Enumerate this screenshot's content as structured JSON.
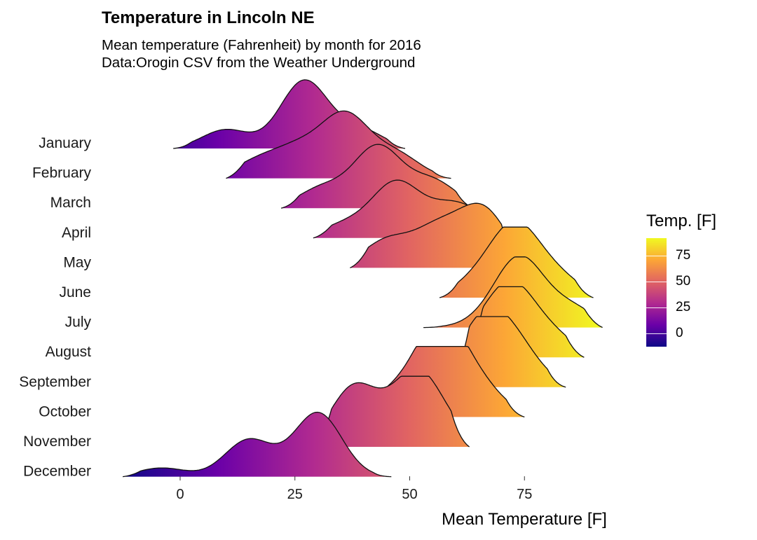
{
  "title": "Temperature in Lincoln NE",
  "subtitle_line1": "Mean temperature (Fahrenheit) by month for 2016",
  "subtitle_line2": "Data:Orogin CSV from the Weather Underground",
  "legend": {
    "title": "Temp. [F]",
    "ticks": [
      "75",
      "50",
      "25",
      "0"
    ],
    "colors": [
      "#0d0887",
      "#6a00a8",
      "#b12a90",
      "#e16462",
      "#fca636",
      "#f0f921"
    ]
  },
  "chart_data": {
    "type": "ridgeline",
    "title": "Temperature in Lincoln NE",
    "xlabel": "Mean Temperature [F]",
    "ylabel": "",
    "xlim": [
      -12.5,
      92
    ],
    "x_ticks": [
      0,
      25,
      50,
      75
    ],
    "categories": [
      "January",
      "February",
      "March",
      "April",
      "May",
      "June",
      "July",
      "August",
      "September",
      "October",
      "November",
      "December"
    ],
    "series": [
      {
        "month": "January",
        "range": [
          -1.5,
          49
        ],
        "peaks": [
          [
            10,
            0.28
          ],
          [
            27,
            1.0
          ],
          [
            39,
            0.28
          ]
        ]
      },
      {
        "month": "February",
        "range": [
          10,
          59
        ],
        "peaks": [
          [
            17,
            0.25
          ],
          [
            26,
            0.4
          ],
          [
            36,
            0.9
          ],
          [
            47,
            0.35
          ]
        ]
      },
      {
        "month": "March",
        "range": [
          22,
          64
        ],
        "peaks": [
          [
            31,
            0.3
          ],
          [
            43,
            0.9
          ],
          [
            55,
            0.4
          ]
        ]
      },
      {
        "month": "April",
        "range": [
          29,
          70
        ],
        "peaks": [
          [
            36,
            0.2
          ],
          [
            47,
            0.8
          ],
          [
            58,
            0.35
          ],
          [
            64,
            0.25
          ]
        ]
      },
      {
        "month": "May",
        "range": [
          37,
          74
        ],
        "peaks": [
          [
            45,
            0.4
          ],
          [
            56,
            0.55
          ],
          [
            66,
            0.85
          ]
        ]
      },
      {
        "month": "June",
        "range": [
          56.5,
          90
        ],
        "peaks": [
          [
            65,
            0.25
          ],
          [
            73,
            1.0
          ],
          [
            82,
            0.3
          ]
        ]
      },
      {
        "month": "July",
        "range": [
          53,
          92
        ],
        "peaks": [
          [
            67,
            0.1
          ],
          [
            74,
            1.0
          ],
          [
            85,
            0.3
          ]
        ]
      },
      {
        "month": "August",
        "range": [
          62,
          88
        ],
        "peaks": [
          [
            64,
            0.25
          ],
          [
            72,
            1.0
          ],
          [
            81,
            0.3
          ]
        ]
      },
      {
        "month": "September",
        "range": [
          59,
          84
        ],
        "peaks": [
          [
            61,
            0.2
          ],
          [
            67,
            0.9
          ],
          [
            74,
            0.45
          ]
        ]
      },
      {
        "month": "October",
        "range": [
          41,
          75
        ],
        "peaks": [
          [
            45,
            0.28
          ],
          [
            54,
            0.55
          ],
          [
            58,
            0.95
          ],
          [
            66,
            0.35
          ]
        ]
      },
      {
        "month": "November",
        "range": [
          29,
          63
        ],
        "peaks": [
          [
            38,
            0.9
          ],
          [
            51,
            1.0
          ],
          [
            57,
            0.25
          ]
        ]
      },
      {
        "month": "December",
        "range": [
          -12.5,
          46
        ],
        "peaks": [
          [
            -4,
            0.13
          ],
          [
            15,
            0.55
          ],
          [
            30,
            0.95
          ]
        ]
      }
    ],
    "grid": false,
    "legend_position": "right"
  }
}
